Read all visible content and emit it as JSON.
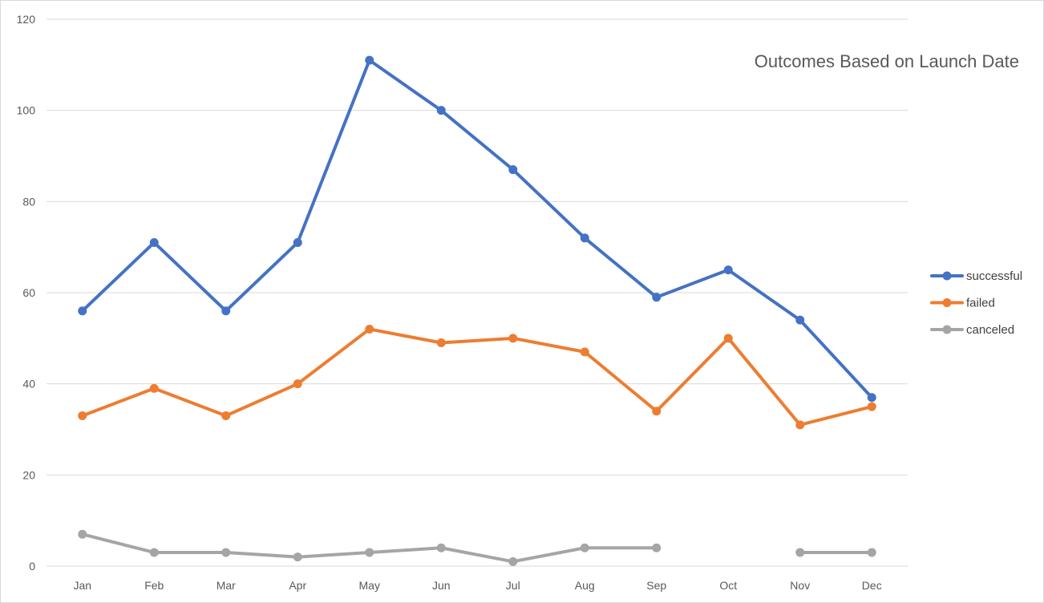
{
  "chart_data": {
    "type": "line",
    "title": "Outcomes Based on Launch Date",
    "xlabel": "",
    "ylabel": "",
    "categories": [
      "Jan",
      "Feb",
      "Mar",
      "Apr",
      "May",
      "Jun",
      "Jul",
      "Aug",
      "Sep",
      "Oct",
      "Nov",
      "Dec"
    ],
    "ylim": [
      0,
      120
    ],
    "yticks": [
      "0",
      "20",
      "40",
      "60",
      "80",
      "100",
      "120"
    ],
    "grid": true,
    "legend_position": "right",
    "series": [
      {
        "name": "successful",
        "color": "#4472c4",
        "values": [
          56,
          71,
          56,
          71,
          111,
          100,
          87,
          72,
          59,
          65,
          54,
          37
        ]
      },
      {
        "name": "failed",
        "color": "#ed7d31",
        "values": [
          33,
          39,
          33,
          40,
          52,
          49,
          50,
          47,
          34,
          50,
          31,
          35
        ]
      },
      {
        "name": "canceled",
        "color": "#a5a5a5",
        "values": [
          7,
          3,
          3,
          2,
          3,
          4,
          1,
          4,
          4,
          null,
          3,
          3
        ]
      }
    ]
  }
}
